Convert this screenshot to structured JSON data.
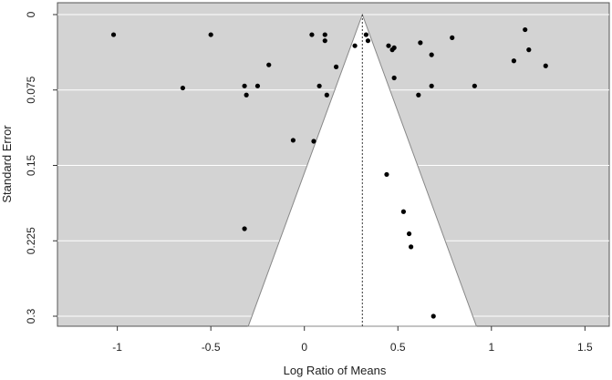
{
  "chart_data": {
    "type": "scatter",
    "title": "",
    "xlabel": "Log Ratio of Means",
    "ylabel": "Standard Error",
    "xlim": [
      -1.32,
      1.63
    ],
    "ylim": [
      0,
      0.302
    ],
    "y_reversed": true,
    "xticks": [
      -1,
      -0.5,
      0,
      0.5,
      1,
      1.5
    ],
    "xtick_labels": [
      "-1",
      "-0.5",
      "0",
      "0.5",
      "1",
      "1.5"
    ],
    "yticks": [
      0,
      0.075,
      0.15,
      0.225,
      0.3
    ],
    "ytick_labels": [
      "0",
      "0.075",
      "0.15",
      "0.225",
      "0.3"
    ],
    "grid": "horizontal",
    "funnel": {
      "center": 0.31,
      "apex_se": 0,
      "base_se": 0.31,
      "base_left": -0.3,
      "base_right": 0.92
    },
    "points": [
      {
        "x": -1.02,
        "y": 0.02
      },
      {
        "x": -0.5,
        "y": 0.02
      },
      {
        "x": -0.65,
        "y": 0.073
      },
      {
        "x": -0.32,
        "y": 0.071
      },
      {
        "x": -0.31,
        "y": 0.08
      },
      {
        "x": -0.25,
        "y": 0.071
      },
      {
        "x": -0.19,
        "y": 0.05
      },
      {
        "x": -0.06,
        "y": 0.125
      },
      {
        "x": -0.32,
        "y": 0.213
      },
      {
        "x": 0.04,
        "y": 0.02
      },
      {
        "x": 0.11,
        "y": 0.02
      },
      {
        "x": 0.11,
        "y": 0.026
      },
      {
        "x": 0.05,
        "y": 0.126
      },
      {
        "x": 0.08,
        "y": 0.071
      },
      {
        "x": 0.12,
        "y": 0.08
      },
      {
        "x": 0.17,
        "y": 0.052
      },
      {
        "x": 0.27,
        "y": 0.031
      },
      {
        "x": 0.33,
        "y": 0.02
      },
      {
        "x": 0.34,
        "y": 0.026
      },
      {
        "x": 0.45,
        "y": 0.031
      },
      {
        "x": 0.47,
        "y": 0.035
      },
      {
        "x": 0.48,
        "y": 0.033
      },
      {
        "x": 0.48,
        "y": 0.063
      },
      {
        "x": 0.44,
        "y": 0.159
      },
      {
        "x": 0.53,
        "y": 0.196
      },
      {
        "x": 0.56,
        "y": 0.218
      },
      {
        "x": 0.57,
        "y": 0.231
      },
      {
        "x": 0.61,
        "y": 0.08
      },
      {
        "x": 0.62,
        "y": 0.028
      },
      {
        "x": 0.68,
        "y": 0.04
      },
      {
        "x": 0.68,
        "y": 0.071
      },
      {
        "x": 0.69,
        "y": 0.3
      },
      {
        "x": 0.79,
        "y": 0.023
      },
      {
        "x": 0.91,
        "y": 0.071
      },
      {
        "x": 1.12,
        "y": 0.046
      },
      {
        "x": 1.18,
        "y": 0.015
      },
      {
        "x": 1.2,
        "y": 0.035
      },
      {
        "x": 1.29,
        "y": 0.051
      }
    ]
  }
}
